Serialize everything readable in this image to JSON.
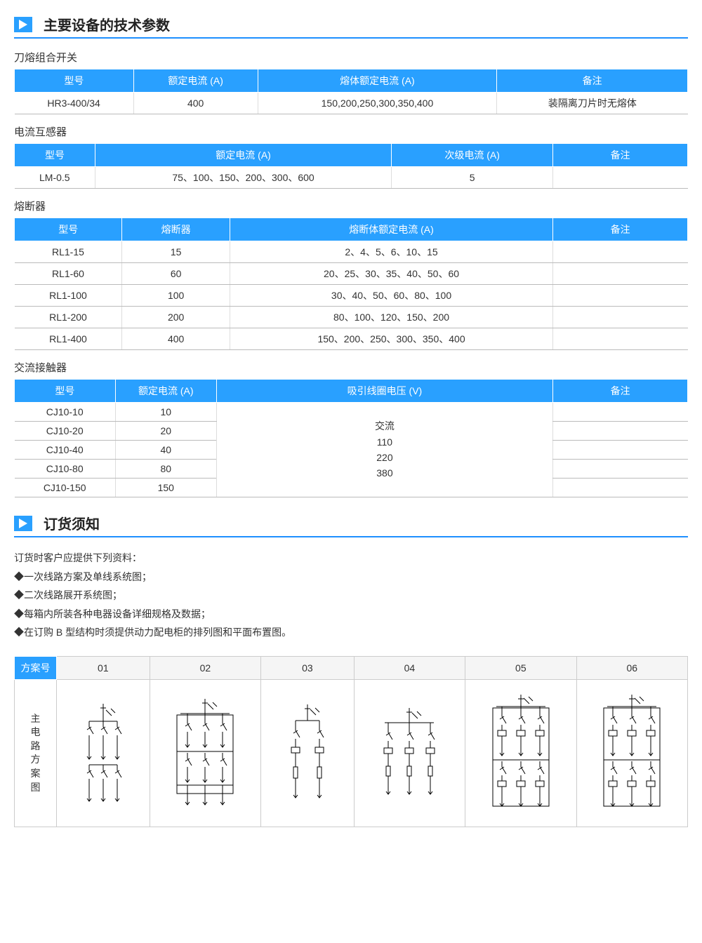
{
  "section1": {
    "title": "主要设备的技术参数",
    "tables": [
      {
        "title": "刀熔组合开关",
        "headers": [
          "型号",
          "额定电流 (A)",
          "熔体额定电流 (A)",
          "备注"
        ],
        "rows": [
          [
            "HR3-400/34",
            "400",
            "150,200,250,300,350,400",
            "装隔离刀片时无熔体"
          ]
        ]
      },
      {
        "title": "电流互感器",
        "headers": [
          "型号",
          "额定电流 (A)",
          "次级电流 (A)",
          "备注"
        ],
        "col_widths": [
          "12%",
          "44%",
          "24%",
          "20%"
        ],
        "rows": [
          [
            "LM-0.5",
            "75、100、150、200、300、600",
            "5",
            ""
          ]
        ]
      },
      {
        "title": "熔断器",
        "headers": [
          "型号",
          "熔断器",
          "熔断体额定电流 (A)",
          "备注"
        ],
        "col_widths": [
          "16%",
          "16%",
          "48%",
          "20%"
        ],
        "rows": [
          [
            "RL1-15",
            "15",
            "2、4、5、6、10、15",
            ""
          ],
          [
            "RL1-60",
            "60",
            "20、25、30、35、40、50、60",
            ""
          ],
          [
            "RL1-100",
            "100",
            "30、40、50、60、80、100",
            ""
          ],
          [
            "RL1-200",
            "200",
            "80、100、120、150、200",
            ""
          ],
          [
            "RL1-400",
            "400",
            "150、200、250、300、350、400",
            ""
          ]
        ]
      }
    ],
    "contactor": {
      "title": "交流接触器",
      "headers": [
        "型号",
        "额定电流 (A)",
        "吸引线圈电压 (V)",
        "备注"
      ],
      "col_widths": [
        "15%",
        "15%",
        "50%",
        "20%"
      ],
      "merged_col2_text": "交流\n110\n220\n380",
      "rows": [
        [
          "CJ10-10",
          "10",
          ""
        ],
        [
          "CJ10-20",
          "20",
          ""
        ],
        [
          "CJ10-40",
          "40",
          ""
        ],
        [
          "CJ10-80",
          "80",
          ""
        ],
        [
          "CJ10-150",
          "150",
          ""
        ]
      ]
    }
  },
  "section2": {
    "title": "订货须知",
    "intro": "订货时客户应提供下列资料：",
    "items": [
      "◆一次线路方案及单线系统图；",
      "◆二次线路展开系统图；",
      "◆每箱内所装各种电器设备详细规格及数据；",
      "◆在订购 B 型结构时须提供动力配电柜的排列图和平面布置图。"
    ],
    "scheme": {
      "header_label": "方案号",
      "side_label": "主电路方案图",
      "numbers": [
        "01",
        "02",
        "03",
        "04",
        "05",
        "06"
      ]
    }
  },
  "colors": {
    "accent": "#29a0ff",
    "border": "#bbb",
    "text": "#333"
  }
}
